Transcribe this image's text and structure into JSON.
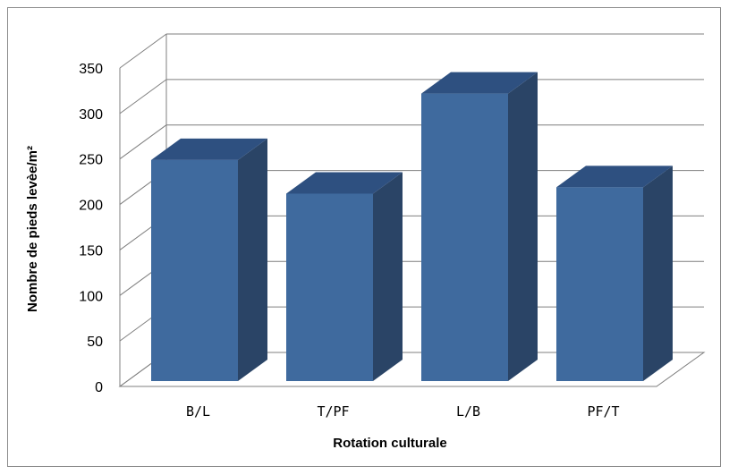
{
  "chart_data": {
    "type": "bar",
    "style": "3d-clustered-column",
    "categories": [
      "B/L",
      "T/PF",
      "L/B",
      "PF/T"
    ],
    "values": [
      243,
      206,
      316,
      213
    ],
    "xlabel": "Rotation culturale",
    "ylabel": "Nombre de pieds levèe/m²",
    "ylim": [
      0,
      350
    ],
    "yticks": [
      "0",
      "50",
      "100",
      "150",
      "200",
      "250",
      "300",
      "350"
    ],
    "grid": true,
    "legend": "none",
    "colors": {
      "front": "#3f6a9e",
      "top": "#2e5080",
      "side": "#2a4466",
      "grid": "#7f7f7f",
      "border": "#8c8c8c"
    }
  }
}
